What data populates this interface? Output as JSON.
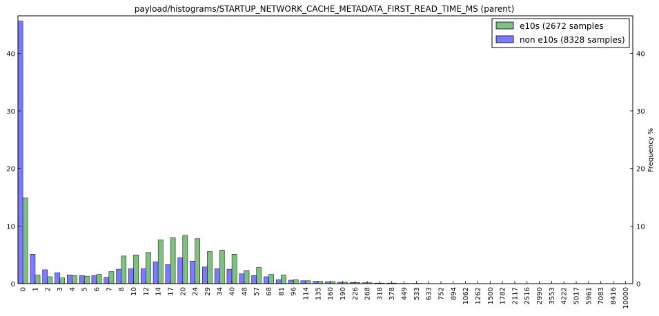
{
  "chart_data": {
    "type": "bar",
    "title": "payload/histograms/STARTUP_NETWORK_CACHE_METADATA_FIRST_READ_TIME_MS (parent)",
    "xlabel": "",
    "ylabel": "Frequency %",
    "ylim": [
      0,
      46.5
    ],
    "yticks": [
      0,
      10,
      20,
      30,
      40
    ],
    "grid": false,
    "legend_position": "top-right",
    "categories": [
      "0",
      "1",
      "2",
      "3",
      "4",
      "5",
      "6",
      "7",
      "8",
      "10",
      "12",
      "14",
      "17",
      "20",
      "24",
      "29",
      "34",
      "40",
      "48",
      "57",
      "68",
      "81",
      "96",
      "114",
      "135",
      "160",
      "190",
      "226",
      "268",
      "318",
      "378",
      "449",
      "533",
      "633",
      "752",
      "894",
      "1062",
      "1262",
      "1500",
      "1782",
      "2117",
      "2516",
      "2990",
      "3553",
      "4222",
      "5017",
      "5961",
      "7083",
      "8416",
      "10000"
    ],
    "series": [
      {
        "name": "non e10s (8328 samples)",
        "color": "#7b7bff",
        "values": [
          45.6,
          5.1,
          2.4,
          1.9,
          1.5,
          1.4,
          1.4,
          1.1,
          2.5,
          2.6,
          2.6,
          3.8,
          3.3,
          4.5,
          3.9,
          2.9,
          2.6,
          2.5,
          1.7,
          1.4,
          1.2,
          0.7,
          0.6,
          0.5,
          0.4,
          0.35,
          0.25,
          0.2,
          0.15,
          0.1,
          0.1,
          0.05,
          0.05,
          0.02,
          0,
          0,
          0,
          0,
          0,
          0,
          0,
          0,
          0,
          0,
          0,
          0,
          0,
          0,
          0,
          0
        ]
      },
      {
        "name": "e10s (2672 samples",
        "color": "#7fbf7f",
        "values": [
          14.9,
          1.5,
          1.2,
          1.0,
          1.4,
          1.3,
          1.6,
          2.1,
          4.8,
          5.0,
          5.4,
          7.6,
          8.0,
          8.4,
          7.8,
          5.6,
          5.8,
          5.1,
          2.3,
          2.8,
          1.6,
          1.5,
          0.7,
          0.5,
          0.4,
          0.35,
          0.25,
          0.2,
          0.15,
          0.1,
          0.1,
          0.05,
          0.05,
          0.02,
          0,
          0,
          0,
          0,
          0,
          0,
          0,
          0,
          0,
          0,
          0,
          0,
          0,
          0,
          0,
          0
        ]
      }
    ]
  }
}
